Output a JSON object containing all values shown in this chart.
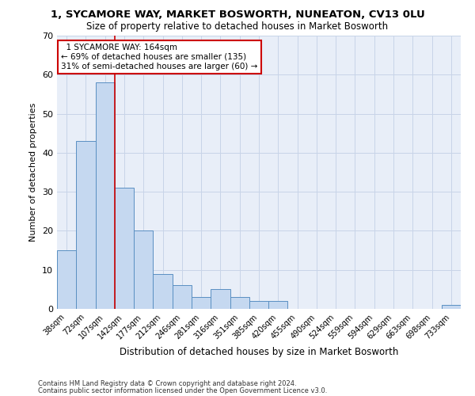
{
  "title_line1": "1, SYCAMORE WAY, MARKET BOSWORTH, NUNEATON, CV13 0LU",
  "title_line2": "Size of property relative to detached houses in Market Bosworth",
  "xlabel": "Distribution of detached houses by size in Market Bosworth",
  "ylabel": "Number of detached properties",
  "annotation_line1": "  1 SYCAMORE WAY: 164sqm  ",
  "annotation_line2": "← 69% of detached houses are smaller (135)",
  "annotation_line3": "31% of semi-detached houses are larger (60) →",
  "categories": [
    "38sqm",
    "72sqm",
    "107sqm",
    "142sqm",
    "177sqm",
    "212sqm",
    "246sqm",
    "281sqm",
    "316sqm",
    "351sqm",
    "385sqm",
    "420sqm",
    "455sqm",
    "490sqm",
    "524sqm",
    "559sqm",
    "594sqm",
    "629sqm",
    "663sqm",
    "698sqm",
    "733sqm"
  ],
  "values": [
    15,
    43,
    58,
    31,
    20,
    9,
    6,
    3,
    5,
    3,
    2,
    2,
    0,
    0,
    0,
    0,
    0,
    0,
    0,
    0,
    1
  ],
  "bar_color": "#c5d8f0",
  "bar_edge_color": "#5a8fc2",
  "vline_x": 2.5,
  "vline_color": "#cc0000",
  "annotation_box_edge_color": "#cc0000",
  "background_color": "#ffffff",
  "plot_bg_color": "#e8eef8",
  "grid_color": "#c8d4e8",
  "ylim": [
    0,
    70
  ],
  "yticks": [
    0,
    10,
    20,
    30,
    40,
    50,
    60,
    70
  ],
  "footnote_line1": "Contains HM Land Registry data © Crown copyright and database right 2024.",
  "footnote_line2": "Contains public sector information licensed under the Open Government Licence v3.0."
}
